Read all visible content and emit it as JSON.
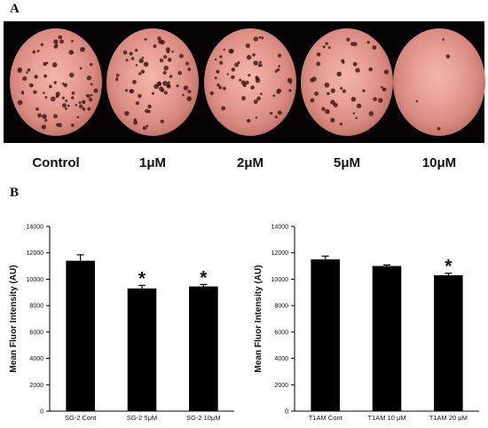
{
  "panel_labels": {
    "a": "A",
    "b": "B"
  },
  "wells": [
    {
      "label": "Control",
      "density": 1.0
    },
    {
      "label": "1μM",
      "density": 0.9
    },
    {
      "label": "2μM",
      "density": 0.8
    },
    {
      "label": "5μM",
      "density": 0.62
    },
    {
      "label": "10μM",
      "density": 0.06
    }
  ],
  "chart_data": [
    {
      "type": "bar",
      "ylabel": "Mean Fluor Intensity (AU)",
      "ylim": [
        0,
        14000
      ],
      "yticks": [
        0,
        2000,
        4000,
        6000,
        8000,
        10000,
        12000,
        14000
      ],
      "categories": [
        "SG-2 Cont",
        "SG-2 5μM",
        "SG-2 10μM"
      ],
      "values": [
        11400,
        9300,
        9450
      ],
      "errors": [
        450,
        230,
        150
      ],
      "significance": [
        "",
        "*",
        "*"
      ],
      "bar_color": "#000000",
      "grid": false
    },
    {
      "type": "bar",
      "ylabel": "Mean Fluor Intensity (AU)",
      "ylim": [
        0,
        14000
      ],
      "yticks": [
        0,
        2000,
        4000,
        6000,
        8000,
        10000,
        12000,
        14000
      ],
      "categories": [
        "T1AM Cont",
        "T1AM 10 μM",
        "T1AM 20 μM"
      ],
      "values": [
        11500,
        11000,
        10300
      ],
      "errors": [
        250,
        80,
        150
      ],
      "significance": [
        "",
        "",
        "*"
      ],
      "bar_color": "#000000",
      "grid": false
    }
  ]
}
